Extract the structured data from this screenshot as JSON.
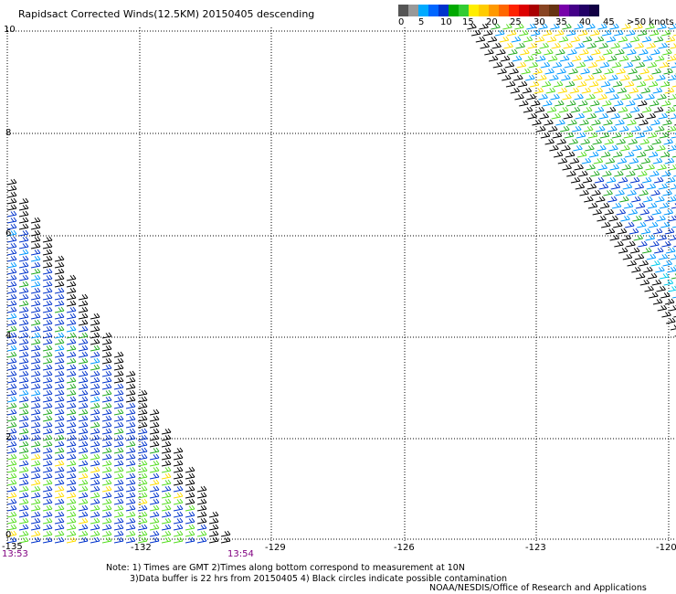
{
  "title": "Rapidsact Corrected Winds(12.5KM) 20150405 descending",
  "legend": {
    "labels": [
      "0",
      "5",
      "10",
      "15",
      "20",
      "25",
      "30",
      "35",
      "40",
      "45",
      ">50 knots"
    ],
    "colors": [
      "#555555",
      "#999999",
      "#00aaff",
      "#0066ff",
      "#0033cc",
      "#00aa00",
      "#33cc33",
      "#ffee00",
      "#ffcc00",
      "#ff9900",
      "#ff6600",
      "#ff2200",
      "#dd0000",
      "#aa0000",
      "#884422",
      "#663311",
      "#7700aa",
      "#440088",
      "#220066",
      "#110044"
    ]
  },
  "axes": {
    "y_ticks": [
      "10",
      "8",
      "6",
      "4",
      "2",
      "0"
    ],
    "x_ticks": [
      "-135",
      "-132",
      "-129",
      "-126",
      "-123",
      "-120"
    ]
  },
  "times": {
    "left": "13:53",
    "right": "13:54"
  },
  "notes": {
    "line1": "Note: 1) Times are GMT 2)Times along bottom correspond to measurement at 10N",
    "line2": "3)Data buffer is 22 hrs from 20150405 4) Black circles indicate possible contamination"
  },
  "credit": "NOAA/NESDIS/Office of Research and Applications",
  "wind_colors": {
    "black": "#000000",
    "blue": "#0033cc",
    "lightblue": "#0099ff",
    "cyan": "#00ccee",
    "green": "#22aa22",
    "lime": "#55dd22",
    "yellow": "#ffdd00",
    "orange": "#ff9900",
    "red": "#ee2200",
    "brown": "#885522"
  }
}
